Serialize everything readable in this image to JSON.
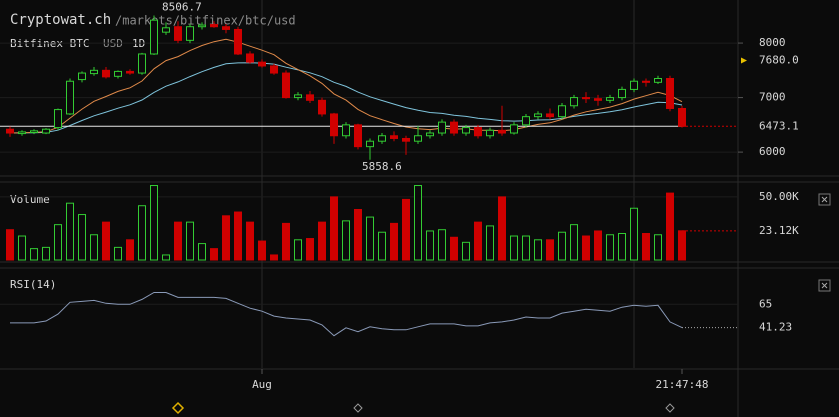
{
  "header": {
    "site": "Cryptowat.ch",
    "path": "/markets/bitfinex/btc/usd",
    "exchange_pair": "Bitfinex BTC",
    "quote": "USD",
    "period": "1D"
  },
  "chart_data": {
    "type": "candlestick",
    "up_color": "#33cc33",
    "down_color": "#d00000",
    "categories": [
      null,
      null,
      null,
      null,
      null,
      null,
      null,
      null,
      null,
      null,
      null,
      null,
      null,
      null,
      null,
      null,
      null,
      null,
      null,
      null,
      null,
      "Aug",
      null,
      null,
      null,
      null,
      null,
      null,
      null,
      null,
      null,
      null,
      null,
      null,
      null,
      null,
      null,
      null,
      null,
      null,
      null,
      null,
      null,
      null,
      null,
      null,
      null,
      null,
      null,
      null,
      null,
      null,
      null,
      null,
      null,
      null,
      "21:47:48"
    ],
    "candles": [
      [
        6420,
        6470,
        6280,
        6350
      ],
      [
        6340,
        6400,
        6300,
        6370
      ],
      [
        6360,
        6420,
        6330,
        6390
      ],
      [
        6350,
        6440,
        6330,
        6420
      ],
      [
        6450,
        6800,
        6400,
        6780
      ],
      [
        6700,
        7350,
        6680,
        7300
      ],
      [
        7330,
        7480,
        7280,
        7450
      ],
      [
        7440,
        7560,
        7400,
        7500
      ],
      [
        7500,
        7560,
        7350,
        7380
      ],
      [
        7390,
        7500,
        7350,
        7480
      ],
      [
        7480,
        7520,
        7420,
        7450
      ],
      [
        7450,
        7820,
        7420,
        7800
      ],
      [
        7800,
        8506.7,
        7780,
        8420
      ],
      [
        8200,
        8380,
        8150,
        8280
      ],
      [
        8300,
        8400,
        8000,
        8050
      ],
      [
        8050,
        8350,
        8000,
        8300
      ],
      [
        8300,
        8380,
        8250,
        8330
      ],
      [
        8340,
        8400,
        8280,
        8300
      ],
      [
        8300,
        8350,
        8180,
        8250
      ],
      [
        8250,
        8300,
        7780,
        7800
      ],
      [
        7800,
        7850,
        7620,
        7650
      ],
      [
        7650,
        7700,
        7550,
        7580
      ],
      [
        7580,
        7620,
        7420,
        7450
      ],
      [
        7450,
        7500,
        6980,
        7000
      ],
      [
        7000,
        7100,
        6950,
        7050
      ],
      [
        7050,
        7120,
        6900,
        6950
      ],
      [
        6950,
        7000,
        6650,
        6700
      ],
      [
        6700,
        6720,
        6150,
        6300
      ],
      [
        6300,
        6550,
        6250,
        6500
      ],
      [
        6500,
        6520,
        6050,
        6100
      ],
      [
        6100,
        6250,
        5858.6,
        6200
      ],
      [
        6200,
        6350,
        6150,
        6300
      ],
      [
        6300,
        6380,
        6200,
        6250
      ],
      [
        6250,
        6300,
        5950,
        6200
      ],
      [
        6200,
        6480,
        6150,
        6300
      ],
      [
        6300,
        6400,
        6250,
        6350
      ],
      [
        6350,
        6600,
        6300,
        6550
      ],
      [
        6550,
        6600,
        6300,
        6350
      ],
      [
        6350,
        6500,
        6300,
        6450
      ],
      [
        6450,
        6500,
        6250,
        6300
      ],
      [
        6300,
        6450,
        6250,
        6400
      ],
      [
        6400,
        6850,
        6300,
        6350
      ],
      [
        6350,
        6550,
        6320,
        6500
      ],
      [
        6500,
        6700,
        6450,
        6650
      ],
      [
        6650,
        6750,
        6600,
        6700
      ],
      [
        6700,
        6800,
        6600,
        6650
      ],
      [
        6650,
        6900,
        6600,
        6850
      ],
      [
        6850,
        7050,
        6800,
        7000
      ],
      [
        7000,
        7100,
        6900,
        6980
      ],
      [
        6980,
        7050,
        6850,
        6950
      ],
      [
        6950,
        7050,
        6900,
        7000
      ],
      [
        7000,
        7200,
        6950,
        7150
      ],
      [
        7150,
        7350,
        7100,
        7300
      ],
      [
        7300,
        7350,
        7200,
        7280
      ],
      [
        7280,
        7400,
        7250,
        7350
      ],
      [
        7350,
        7400,
        6750,
        6800
      ],
      [
        6800,
        6850,
        6450,
        6473.1
      ]
    ],
    "ylim": [
      5580,
      8790
    ],
    "yticks": [
      6000,
      7000,
      8000
    ],
    "high_label": 8506.7,
    "low_label": 5858.6,
    "alert": {
      "value": 7680,
      "label": "7680.0"
    },
    "last_price": 6473.1,
    "volume": {
      "label": "Volume",
      "values": [
        24000,
        19000,
        9000,
        10000,
        28000,
        45000,
        36000,
        20000,
        30000,
        10000,
        16000,
        43000,
        59000,
        4000,
        30000,
        30000,
        13000,
        9000,
        35000,
        38000,
        30000,
        15000,
        4000,
        29000,
        16000,
        17000,
        30000,
        50000,
        31000,
        40000,
        34000,
        22000,
        29000,
        48000,
        59000,
        23000,
        24000,
        18000,
        14000,
        30000,
        27000,
        50000,
        19000,
        19000,
        16000,
        16000,
        22000,
        28000,
        19000,
        23000,
        20000,
        21000,
        41000,
        21000,
        20000,
        53000,
        23120
      ],
      "ylim": [
        0,
        61000
      ],
      "yticks": [
        {
          "value": 50000,
          "label": "50.00K"
        }
      ],
      "last": {
        "value": 23120,
        "label": "23.12K"
      }
    },
    "rsi": {
      "label": "RSI(14)",
      "values": [
        46,
        46,
        46,
        48,
        55,
        67,
        68,
        69,
        66,
        65,
        65,
        70,
        77,
        77,
        72,
        72,
        72,
        72,
        71,
        66,
        61,
        58,
        53,
        51,
        50,
        49,
        44,
        33,
        41,
        37,
        42,
        40,
        39,
        39,
        42,
        45,
        45,
        45,
        43,
        43,
        46,
        47,
        49,
        52,
        51,
        51,
        56,
        58,
        60,
        59,
        58,
        62,
        64,
        63,
        64,
        47,
        41.23
      ],
      "ylim": [
        0,
        100
      ],
      "yticks": [
        65
      ],
      "last": 41.23
    }
  }
}
